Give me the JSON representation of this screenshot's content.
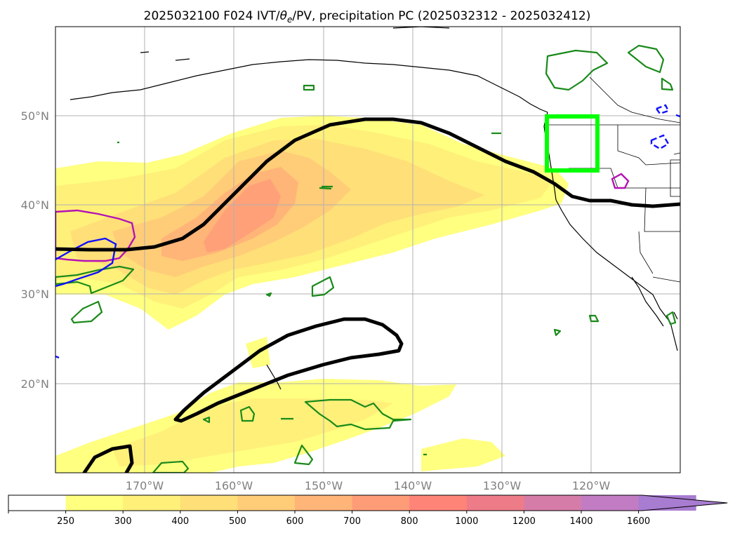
{
  "title": {
    "prefix": "2025032100 F024 IVT/",
    "theta_symbol": "θ",
    "theta_subscript": "e",
    "suffix": "/PV, precipitation PC (2025032312 - 2025032412)"
  },
  "map": {
    "lat_labels": [
      "50°N",
      "40°N",
      "30°N",
      "20°N"
    ],
    "lon_labels": [
      "170°W",
      "160°W",
      "150°W",
      "140°W",
      "130°W",
      "120°W"
    ],
    "colors": {
      "pv_contour": "#000000",
      "theta_contour": "#1a8a1a",
      "precip_contour": "#b413b4",
      "blue_contour": "#1010ff",
      "target_box": "#00ff00"
    }
  },
  "colorbar": {
    "ticks": [
      "250",
      "300",
      "400",
      "500",
      "600",
      "700",
      "800",
      "1000",
      "1200",
      "1400",
      "1600"
    ],
    "colors": [
      "#ffffff",
      "#ffff80",
      "#fff07a",
      "#ffdf78",
      "#ffcc78",
      "#ffb478",
      "#ff9c78",
      "#ff8478",
      "#ee7c88",
      "#d67ca8",
      "#c27cc4",
      "#a87cd0"
    ],
    "extend": "max"
  }
}
